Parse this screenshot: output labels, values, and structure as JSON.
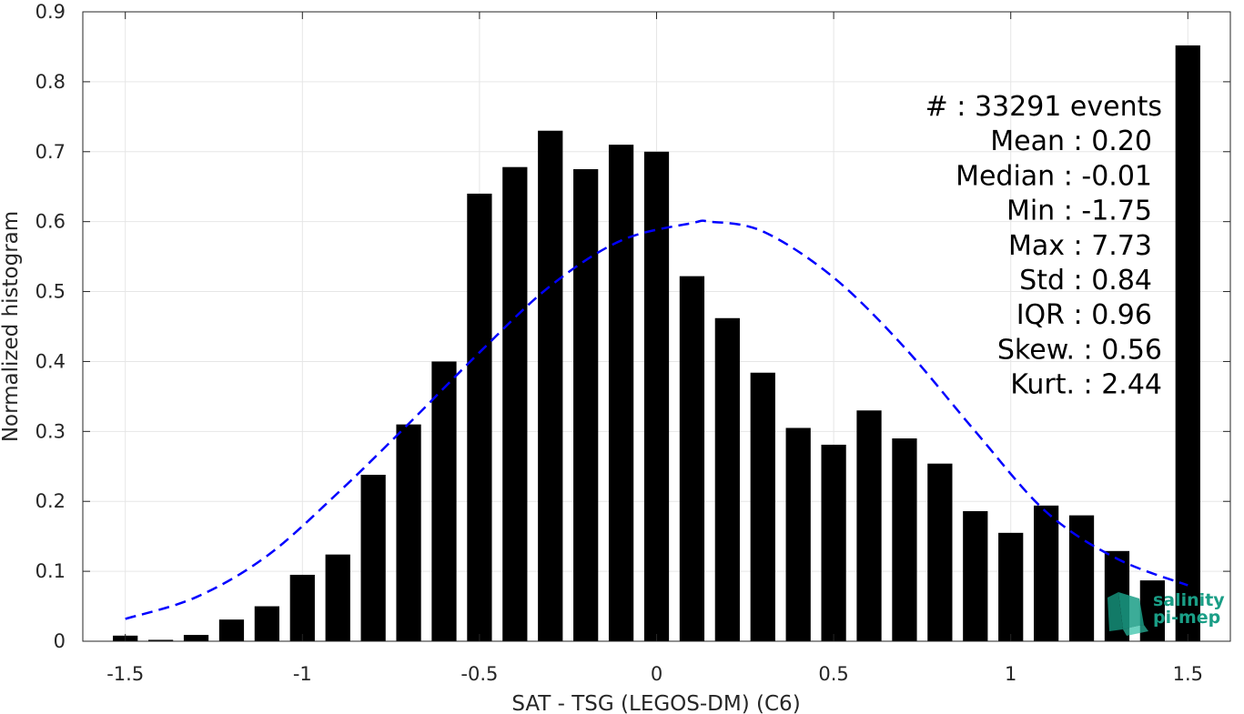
{
  "chart_data": {
    "type": "bar",
    "xlabel": "SAT - TSG (LEGOS-DM) (C6)",
    "ylabel": "Normalized histogram",
    "xlim": [
      -1.62,
      1.62
    ],
    "ylim": [
      0,
      0.9
    ],
    "x_ticks": [
      -1.5,
      -1,
      -0.5,
      0,
      0.5,
      1,
      1.5
    ],
    "x_tick_labels": [
      "-1.5",
      "-1",
      "-0.5",
      "0",
      "0.5",
      "1",
      "1.5"
    ],
    "y_ticks": [
      0,
      0.1,
      0.2,
      0.3,
      0.4,
      0.5,
      0.6,
      0.7,
      0.8,
      0.9
    ],
    "y_tick_labels": [
      "0",
      "0.1",
      "0.2",
      "0.3",
      "0.4",
      "0.5",
      "0.6",
      "0.7",
      "0.8",
      "0.9"
    ],
    "grid": true,
    "bar_width": 0.07,
    "bar_color": "#000000",
    "bars": {
      "x": [
        -1.5,
        -1.4,
        -1.3,
        -1.2,
        -1.1,
        -1.0,
        -0.9,
        -0.8,
        -0.7,
        -0.6,
        -0.5,
        -0.4,
        -0.3,
        -0.2,
        -0.1,
        0.0,
        0.1,
        0.2,
        0.3,
        0.4,
        0.5,
        0.6,
        0.7,
        0.8,
        0.9,
        1.0,
        1.1,
        1.2,
        1.3,
        1.4,
        1.5
      ],
      "values": [
        0.008,
        0.002,
        0.009,
        0.031,
        0.05,
        0.095,
        0.124,
        0.238,
        0.31,
        0.4,
        0.64,
        0.678,
        0.73,
        0.675,
        0.71,
        0.7,
        0.522,
        0.462,
        0.384,
        0.305,
        0.281,
        0.33,
        0.29,
        0.254,
        0.186,
        0.155,
        0.194,
        0.18,
        0.129,
        0.087,
        0.852
      ]
    },
    "fit_curve": {
      "style": "dashed",
      "color": "#0000ff",
      "x": [
        -1.5,
        -1.3,
        -1.1,
        -0.9,
        -0.7,
        -0.5,
        -0.3,
        -0.1,
        0.1,
        0.15,
        0.3,
        0.5,
        0.7,
        0.9,
        1.1,
        1.3,
        1.5
      ],
      "values": [
        0.032,
        0.063,
        0.122,
        0.212,
        0.311,
        0.413,
        0.508,
        0.573,
        0.598,
        0.6,
        0.586,
        0.52,
        0.42,
        0.3,
        0.185,
        0.118,
        0.08
      ]
    },
    "stats_lines": [
      "#  : 33291 events",
      "Mean : 0.20",
      "Median : -0.01",
      "Min : -1.75",
      "Max : 7.73",
      "Std : 0.84",
      "IQR : 0.96",
      "Skew. : 0.56",
      "Kurt. : 2.44"
    ]
  },
  "logo": {
    "line1": "salinity",
    "line2": "pi-mep"
  },
  "colors": {
    "grid": "#e6e6e6",
    "axis": "#262626",
    "logo": "#1a9e86"
  }
}
